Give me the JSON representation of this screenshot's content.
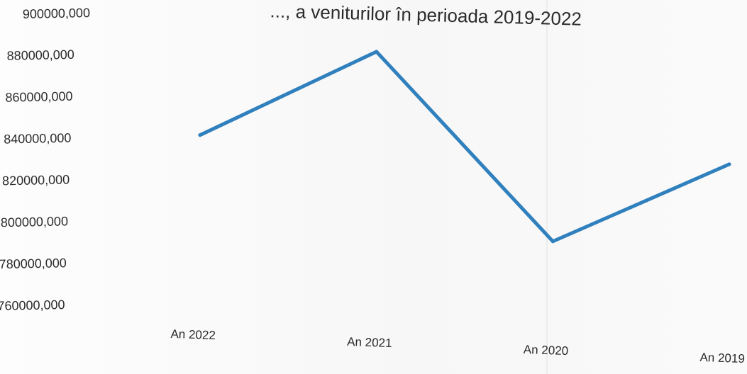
{
  "chart_data": {
    "type": "line",
    "title": "..., a veniturilor în perioada 2019-2022",
    "categories": [
      "An 2022",
      "An 2021",
      "An 2020",
      "An 2019"
    ],
    "series": [
      {
        "values": [
          842000,
          882000,
          791000,
          828000
        ]
      }
    ],
    "ylim": [
      760000,
      900000
    ],
    "yticks": [
      "900000,000",
      "880000,000",
      "860000,000",
      "840000,000",
      "820000,000",
      "800000,000",
      "780000,000",
      "760000,000"
    ],
    "grid": false,
    "colors": {
      "series": "#2f80bd"
    }
  }
}
